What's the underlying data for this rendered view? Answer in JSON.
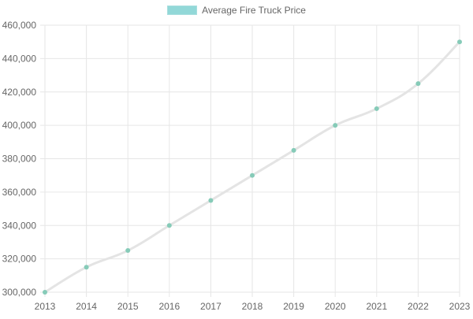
{
  "chart_data": {
    "type": "line",
    "x": [
      "2013",
      "2014",
      "2015",
      "2016",
      "2017",
      "2018",
      "2019",
      "2020",
      "2021",
      "2022",
      "2023"
    ],
    "series": [
      {
        "name": "Average Fire Truck Price",
        "values": [
          300000,
          315000,
          325000,
          340000,
          355000,
          370000,
          385000,
          400000,
          410000,
          425000,
          450000
        ]
      }
    ],
    "ylim": [
      300000,
      460000
    ],
    "yticks": [
      "300,000",
      "320,000",
      "340,000",
      "360,000",
      "380,000",
      "400,000",
      "420,000",
      "440,000",
      "460,000"
    ],
    "grid": true,
    "legend_position": "top",
    "colors": {
      "line": "#e4e4e4",
      "point": "#86cbb8",
      "legend_fill": "#92d8d8",
      "grid": "#e6e6e6",
      "text": "#666666"
    }
  }
}
